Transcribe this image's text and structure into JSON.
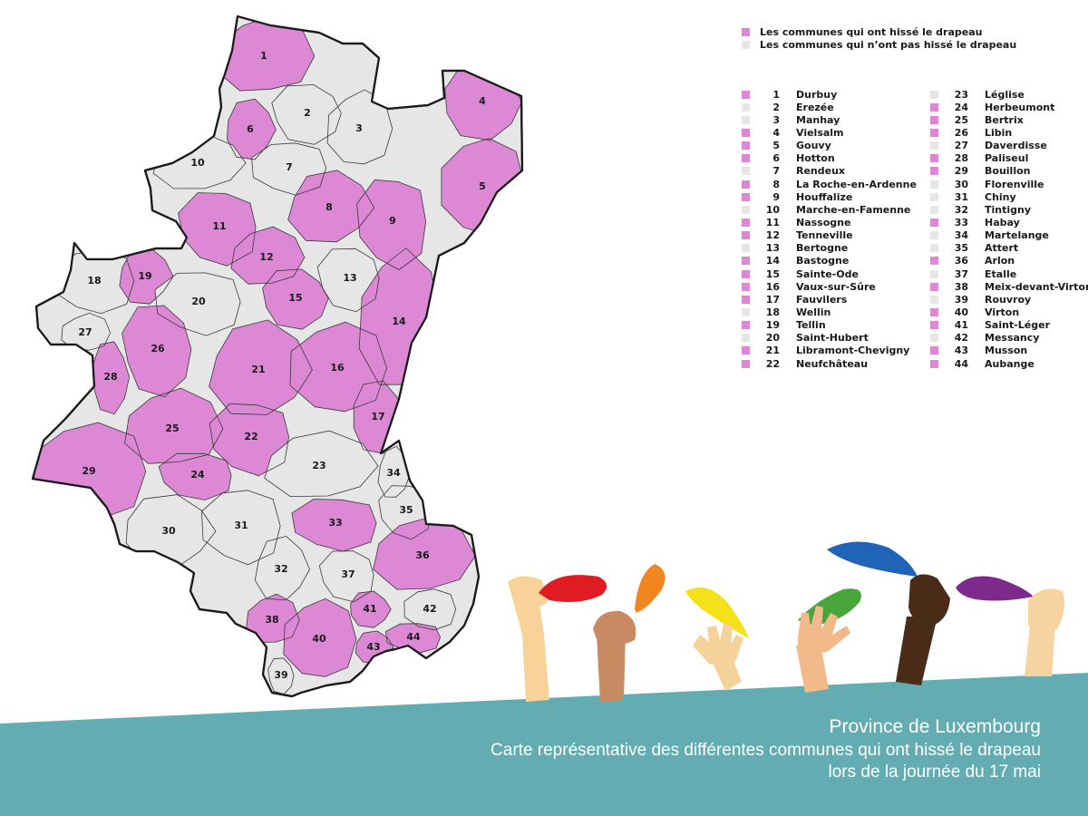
{
  "colors": {
    "flag_raised": "#dd88d5",
    "not_raised": "#e6e6e6",
    "border": "#1a1a1a",
    "footer_band": "#63adb2",
    "footer_text": "#ffffff"
  },
  "legend": {
    "raised_label": "Les communes qui ont hissé le drapeau",
    "not_raised_label": "Les communes qui n’ont pas hissé le drapeau"
  },
  "communes": [
    {
      "num": "1",
      "name": "Durbuy",
      "raised": true
    },
    {
      "num": "2",
      "name": "Erezée",
      "raised": false
    },
    {
      "num": "3",
      "name": "Manhay",
      "raised": false
    },
    {
      "num": "4",
      "name": "Vielsalm",
      "raised": true
    },
    {
      "num": "5",
      "name": "Gouvy",
      "raised": true
    },
    {
      "num": "6",
      "name": "Hotton",
      "raised": true
    },
    {
      "num": "7",
      "name": "Rendeux",
      "raised": false
    },
    {
      "num": "8",
      "name": "La Roche-en-Ardenne",
      "raised": true
    },
    {
      "num": "9",
      "name": "Houffalize",
      "raised": true
    },
    {
      "num": "10",
      "name": "Marche-en-Famenne",
      "raised": false
    },
    {
      "num": "11",
      "name": "Nassogne",
      "raised": true
    },
    {
      "num": "12",
      "name": "Tenneville",
      "raised": true
    },
    {
      "num": "13",
      "name": "Bertogne",
      "raised": false
    },
    {
      "num": "14",
      "name": "Bastogne",
      "raised": true
    },
    {
      "num": "15",
      "name": "Sainte-Ode",
      "raised": true
    },
    {
      "num": "16",
      "name": "Vaux-sur-Sûre",
      "raised": true
    },
    {
      "num": "17",
      "name": "Fauvilers",
      "raised": true
    },
    {
      "num": "18",
      "name": "Wellin",
      "raised": false
    },
    {
      "num": "19",
      "name": "Tellin",
      "raised": true
    },
    {
      "num": "20",
      "name": "Saint-Hubert",
      "raised": false
    },
    {
      "num": "21",
      "name": "Libramont-Chevigny",
      "raised": true
    },
    {
      "num": "22",
      "name": "Neufchâteau",
      "raised": true
    },
    {
      "num": "23",
      "name": "Léglise",
      "raised": false
    },
    {
      "num": "24",
      "name": "Herbeumont",
      "raised": true
    },
    {
      "num": "25",
      "name": "Bertrix",
      "raised": true
    },
    {
      "num": "26",
      "name": "Libin",
      "raised": true
    },
    {
      "num": "27",
      "name": "Daverdisse",
      "raised": false
    },
    {
      "num": "28",
      "name": "Paliseul",
      "raised": true
    },
    {
      "num": "29",
      "name": "Bouillon",
      "raised": true
    },
    {
      "num": "30",
      "name": "Florenville",
      "raised": false
    },
    {
      "num": "31",
      "name": "Chiny",
      "raised": false
    },
    {
      "num": "32",
      "name": "Tintigny",
      "raised": false
    },
    {
      "num": "33",
      "name": "Habay",
      "raised": true
    },
    {
      "num": "34",
      "name": "Martelange",
      "raised": false
    },
    {
      "num": "35",
      "name": "Attert",
      "raised": false
    },
    {
      "num": "36",
      "name": "Arlon",
      "raised": true
    },
    {
      "num": "37",
      "name": "Etalle",
      "raised": false
    },
    {
      "num": "38",
      "name": "Meix-devant-Virton",
      "raised": true
    },
    {
      "num": "39",
      "name": "Rouvroy",
      "raised": false
    },
    {
      "num": "40",
      "name": "Virton",
      "raised": true
    },
    {
      "num": "41",
      "name": "Saint-Léger",
      "raised": true
    },
    {
      "num": "42",
      "name": "Messancy",
      "raised": false
    },
    {
      "num": "43",
      "name": "Musson",
      "raised": true
    },
    {
      "num": "44",
      "name": "Aubange",
      "raised": true
    }
  ],
  "footer": {
    "title": "Province de Luxembourg",
    "subtitle": "Carte représentative des différentes communes qui ont hissé le drapeau lors de la journée du 17 mai"
  },
  "illustration": {
    "feather_colors": [
      "#e11b22",
      "#f0861f",
      "#f5e11a",
      "#4aa63c",
      "#1f64b5",
      "#7e2a8c"
    ],
    "skin_tones": [
      "#f7d39a",
      "#c78a63",
      "#f5d29a",
      "#f2b98a",
      "#4a2b17",
      "#f6d3a0"
    ]
  }
}
